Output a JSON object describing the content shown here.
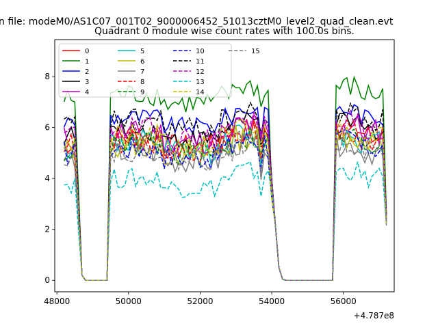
{
  "chart_data": {
    "type": "line",
    "suptitle": "n file: modeM0/AS1C07_001T02_9000006452_51013cztM0_level2_quad_clean.evt",
    "title": "Quadrant 0 module wise count rates with 100.0s bins.",
    "xlabel": "",
    "ylabel": "",
    "offset_text": "+4.787e8",
    "xlim": [
      47940,
      57420
    ],
    "ylim": [
      -0.45,
      9.45
    ],
    "xticks": [
      48000,
      50000,
      52000,
      54000,
      56000
    ],
    "xtick_labels": [
      "48000",
      "50000",
      "52000",
      "54000",
      "56000"
    ],
    "yticks": [
      0,
      2,
      4,
      6,
      8
    ],
    "ytick_labels": [
      "0",
      "2",
      "4",
      "6",
      "8"
    ],
    "legend_position": "upper-left",
    "gti": [
      [
        48200,
        48550
      ],
      [
        49500,
        53900
      ],
      [
        55800,
        57200
      ]
    ],
    "gti_edges": [
      [
        48200,
        48650,
        48750
      ],
      [
        49400,
        49500,
        53900,
        54000
      ],
      [
        55700,
        55800,
        57200
      ]
    ],
    "series": [
      {
        "name": "0",
        "color": "#ff0000",
        "dash": "solid",
        "base": 5.6,
        "noise": 0.5
      },
      {
        "name": "1",
        "color": "#008000",
        "dash": "solid",
        "base": 7.3,
        "noise": 0.45
      },
      {
        "name": "2",
        "color": "#0000ff",
        "dash": "solid",
        "base": 6.4,
        "noise": 0.35
      },
      {
        "name": "3",
        "color": "#000000",
        "dash": "solid",
        "base": 5.9,
        "noise": 0.4
      },
      {
        "name": "4",
        "color": "#bf00bf",
        "dash": "solid",
        "base": 5.8,
        "noise": 0.5
      },
      {
        "name": "5",
        "color": "#00bfbf",
        "dash": "solid",
        "base": 5.4,
        "noise": 0.5
      },
      {
        "name": "6",
        "color": "#bfbf00",
        "dash": "solid",
        "base": 5.3,
        "noise": 0.5
      },
      {
        "name": "7",
        "color": "#808080",
        "dash": "solid",
        "base": 5.0,
        "noise": 0.45
      },
      {
        "name": "8",
        "color": "#ff0000",
        "dash": "dashed",
        "base": 5.5,
        "noise": 0.5
      },
      {
        "name": "9",
        "color": "#008000",
        "dash": "dashed",
        "base": 5.3,
        "noise": 0.5
      },
      {
        "name": "10",
        "color": "#0000ff",
        "dash": "dashed",
        "base": 5.2,
        "noise": 0.5
      },
      {
        "name": "11",
        "color": "#000000",
        "dash": "dashed",
        "base": 6.3,
        "noise": 0.45
      },
      {
        "name": "12",
        "color": "#bf00bf",
        "dash": "dashed",
        "base": 5.9,
        "noise": 0.5
      },
      {
        "name": "13",
        "color": "#00bfbf",
        "dash": "dashed",
        "base": 4.0,
        "noise": 0.4
      },
      {
        "name": "14",
        "color": "#bfbf00",
        "dash": "dashed",
        "base": 5.6,
        "noise": 0.5
      },
      {
        "name": "15",
        "color": "#808080",
        "dash": "dashed",
        "base": 5.1,
        "noise": 0.45
      }
    ]
  }
}
